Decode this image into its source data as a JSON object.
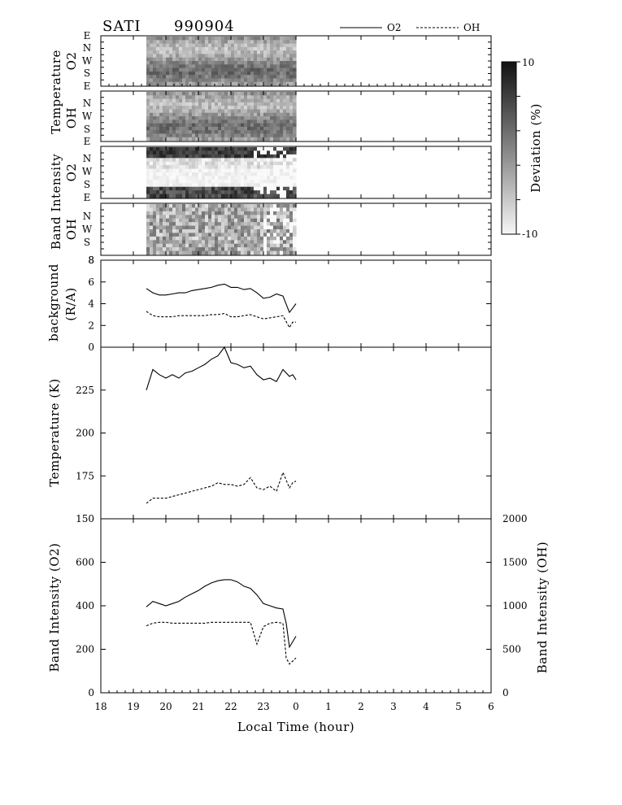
{
  "header": {
    "station": "SATI",
    "date": "990904"
  },
  "legend": [
    {
      "label": "O2",
      "style": "solid"
    },
    {
      "label": "OH",
      "style": "dashed"
    }
  ],
  "colorbar": {
    "label": "Deviation  (%)",
    "max_label": "10",
    "min_label": "-10",
    "range": [
      -10,
      10
    ]
  },
  "panels": {
    "temp_o2": {
      "label_line1": "Temperature",
      "label_line2": "O2",
      "dir_ticks": [
        "E",
        "N",
        "W",
        "S",
        "E"
      ]
    },
    "temp_oh": {
      "label_line1": "Temperature",
      "label_line2": "OH",
      "dir_ticks": [
        "N",
        "W",
        "S",
        "E"
      ]
    },
    "int_o2": {
      "label_line1": "Band  Intensity",
      "label_line2": "O2",
      "dir_ticks": [
        "N",
        "W",
        "S",
        "E"
      ]
    },
    "int_oh": {
      "label_line1": "Band  Intensity",
      "label_line2": "OH",
      "dir_ticks": [
        "N",
        "W",
        "S"
      ]
    }
  },
  "xaxis": {
    "label": "Local  Time  (hour)",
    "ticks": [
      "18",
      "19",
      "20",
      "21",
      "22",
      "23",
      "0",
      "1",
      "2",
      "3",
      "4",
      "5",
      "6"
    ],
    "range": [
      18,
      30
    ]
  },
  "chart_data": [
    {
      "type": "line",
      "ylabel_line1": "background",
      "ylabel_line2": "(R/A)",
      "ylim": [
        0,
        8
      ],
      "yticks": [
        "0",
        "2",
        "4",
        "6",
        "8"
      ],
      "x": [
        19.4,
        19.6,
        19.8,
        20.0,
        20.2,
        20.4,
        20.6,
        20.8,
        21.0,
        21.2,
        21.4,
        21.6,
        21.8,
        22.0,
        22.2,
        22.4,
        22.6,
        22.8,
        23.0,
        23.2,
        23.4,
        23.6,
        23.8,
        23.9,
        24.0
      ],
      "series": [
        {
          "name": "O2",
          "style": "solid",
          "values": [
            5.4,
            5.0,
            4.8,
            4.8,
            4.9,
            5.0,
            5.0,
            5.2,
            5.3,
            5.4,
            5.5,
            5.7,
            5.8,
            5.5,
            5.5,
            5.3,
            5.4,
            5.0,
            4.5,
            4.6,
            4.9,
            4.7,
            3.2,
            3.6,
            4.0
          ]
        },
        {
          "name": "OH",
          "style": "dashed",
          "values": [
            3.3,
            2.9,
            2.8,
            2.8,
            2.8,
            2.9,
            2.9,
            2.9,
            2.9,
            2.9,
            3.0,
            3.0,
            3.1,
            2.8,
            2.8,
            2.9,
            3.0,
            2.8,
            2.6,
            2.7,
            2.8,
            2.9,
            1.8,
            2.3,
            2.3
          ]
        }
      ]
    },
    {
      "type": "line",
      "ylabel": "Temperature  (K)",
      "ylim": [
        150,
        250
      ],
      "yticks": [
        "150",
        "175",
        "200",
        "225"
      ],
      "x": [
        19.4,
        19.6,
        19.8,
        20.0,
        20.2,
        20.4,
        20.6,
        20.8,
        21.0,
        21.2,
        21.4,
        21.6,
        21.8,
        22.0,
        22.2,
        22.4,
        22.6,
        22.8,
        23.0,
        23.2,
        23.4,
        23.6,
        23.8,
        23.9,
        24.0
      ],
      "series": [
        {
          "name": "O2",
          "style": "solid",
          "values": [
            225,
            237,
            234,
            232,
            234,
            232,
            235,
            236,
            238,
            240,
            243,
            245,
            250,
            241,
            240,
            238,
            239,
            234,
            231,
            232,
            230,
            237,
            233,
            234,
            231
          ]
        },
        {
          "name": "OH",
          "style": "dashed",
          "values": [
            159,
            162,
            162,
            162,
            163,
            164,
            165,
            166,
            167,
            168,
            169,
            171,
            170,
            170,
            169,
            170,
            174,
            168,
            167,
            169,
            166,
            177,
            168,
            171,
            172
          ]
        }
      ]
    },
    {
      "type": "line",
      "ylabel_left": "Band  Intensity  (O2)",
      "ylabel_right": "Band  Intensity  (OH)",
      "ylim": [
        0,
        800
      ],
      "ylim_right": [
        0,
        2000
      ],
      "yticks": [
        "0",
        "200",
        "400",
        "600"
      ],
      "yticks_right": [
        "0",
        "500",
        "1000",
        "1500",
        "2000"
      ],
      "x": [
        19.4,
        19.6,
        19.8,
        20.0,
        20.2,
        20.4,
        20.6,
        20.8,
        21.0,
        21.2,
        21.4,
        21.6,
        21.8,
        22.0,
        22.2,
        22.4,
        22.6,
        22.8,
        23.0,
        23.2,
        23.4,
        23.6,
        23.7,
        23.8,
        24.0
      ],
      "series": [
        {
          "name": "O2",
          "style": "solid",
          "axis": "left",
          "values": [
            395,
            420,
            410,
            400,
            410,
            420,
            440,
            455,
            470,
            490,
            505,
            515,
            520,
            520,
            510,
            490,
            480,
            450,
            410,
            400,
            390,
            385,
            320,
            210,
            260
          ]
        },
        {
          "name": "OH",
          "style": "dashed",
          "axis": "right",
          "values": [
            770,
            800,
            810,
            810,
            800,
            800,
            800,
            800,
            800,
            800,
            810,
            810,
            810,
            810,
            810,
            810,
            810,
            560,
            760,
            800,
            810,
            800,
            400,
            330,
            400
          ]
        }
      ]
    }
  ]
}
